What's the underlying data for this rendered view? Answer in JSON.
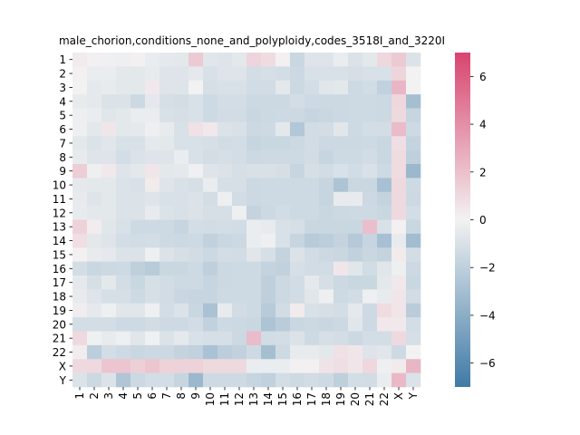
{
  "chart_data": {
    "type": "heatmap",
    "title": "male_chorion,conditions_none_and_polyploidy,codes_3518I_and_3220I",
    "xlabel": "",
    "ylabel": "",
    "categories": [
      "1",
      "2",
      "3",
      "4",
      "5",
      "6",
      "7",
      "8",
      "9",
      "10",
      "11",
      "12",
      "13",
      "14",
      "15",
      "16",
      "17",
      "18",
      "19",
      "20",
      "21",
      "22",
      "X",
      "Y"
    ],
    "value_range": [
      -7,
      7
    ],
    "colorbar_ticks": [
      6,
      4,
      2,
      0,
      -2,
      -4,
      -6
    ],
    "colormap": {
      "low": "#3f7aa6",
      "mid": "#f2f2f2",
      "high": "#d9446f"
    },
    "values": [
      [
        0.3,
        0.1,
        -0.1,
        -0.2,
        0.1,
        -0.3,
        -0.5,
        -0.6,
        1.6,
        -0.7,
        -0.8,
        -0.6,
        1.2,
        0.9,
        0.1,
        -1.6,
        -0.8,
        -0.8,
        -0.3,
        -0.9,
        -0.6,
        1.1,
        1.6,
        -0.9
      ],
      [
        0.1,
        -0.3,
        -0.3,
        -0.6,
        -0.6,
        -0.4,
        -0.8,
        -0.8,
        -0.5,
        -1.0,
        -0.8,
        -0.8,
        -1.2,
        -1.1,
        -1.2,
        -1.5,
        -1.0,
        -1.0,
        -1.0,
        -1.1,
        -1.0,
        -1.0,
        1.2,
        0.0
      ],
      [
        0.0,
        -0.5,
        -0.4,
        -0.6,
        -0.6,
        0.4,
        -0.8,
        -0.8,
        0.0,
        -1.1,
        -1.0,
        -1.0,
        -1.3,
        -1.3,
        -0.6,
        -1.5,
        -1.2,
        -0.7,
        -0.6,
        -1.4,
        -1.3,
        -1.9,
        2.4,
        0.0
      ],
      [
        -0.4,
        -0.5,
        -0.9,
        -0.9,
        -1.5,
        -0.5,
        -1.1,
        -1.2,
        -1.0,
        -1.4,
        -1.2,
        -1.2,
        -1.5,
        -1.5,
        -1.5,
        -1.2,
        -1.4,
        -1.5,
        -1.5,
        -1.4,
        -1.4,
        -1.5,
        1.1,
        -3.0
      ],
      [
        -0.2,
        -0.3,
        -0.7,
        -0.6,
        -0.3,
        -0.3,
        -1.0,
        -1.1,
        -1.0,
        -1.4,
        -1.3,
        -1.3,
        -1.6,
        -1.5,
        -1.4,
        -1.5,
        -1.7,
        -1.6,
        -1.5,
        -1.4,
        -1.4,
        -1.5,
        1.0,
        -1.7
      ],
      [
        -0.2,
        -0.6,
        0.5,
        -0.6,
        -0.5,
        -0.2,
        -0.4,
        -1.0,
        0.7,
        0.4,
        -0.9,
        -1.0,
        -1.5,
        -1.4,
        -0.6,
        -2.5,
        -1.3,
        -1.2,
        -0.7,
        -1.4,
        -1.2,
        -1.2,
        2.2,
        -1.4
      ],
      [
        -0.6,
        -0.9,
        -0.7,
        -1.0,
        -1.0,
        -0.5,
        -0.6,
        -1.0,
        -1.0,
        -1.1,
        -1.3,
        -1.2,
        -1.7,
        -1.6,
        -1.6,
        -1.5,
        -1.3,
        -1.5,
        -1.5,
        -1.5,
        -1.4,
        -1.6,
        0.8,
        -1.8
      ],
      [
        -0.4,
        -0.8,
        -0.8,
        -1.2,
        -0.9,
        -0.8,
        -0.8,
        -0.3,
        -1.0,
        -1.2,
        -1.1,
        -1.2,
        -1.5,
        -1.4,
        -1.4,
        -1.4,
        -1.3,
        -1.7,
        -1.4,
        -1.4,
        -1.3,
        -1.6,
        0.9,
        -2.0
      ],
      [
        1.5,
        -0.2,
        0.4,
        -0.8,
        -0.6,
        0.5,
        -0.6,
        -0.5,
        -0.1,
        -0.8,
        -0.9,
        -1.1,
        -1.0,
        -1.0,
        -1.1,
        -1.7,
        -1.1,
        -1.3,
        -1.0,
        -1.3,
        -1.0,
        -1.4,
        0.9,
        -3.4
      ],
      [
        -0.5,
        -0.6,
        -0.6,
        -0.9,
        -1.0,
        0.3,
        -0.8,
        -1.0,
        -1.1,
        -0.3,
        -1.1,
        -1.1,
        -1.5,
        -1.4,
        -1.4,
        -1.4,
        -1.4,
        -1.7,
        -2.7,
        -1.6,
        -1.6,
        -2.9,
        1.0,
        -1.4
      ],
      [
        -0.4,
        -0.8,
        -0.6,
        -0.9,
        -0.9,
        -0.8,
        -1.0,
        -1.0,
        -0.9,
        -1.2,
        -0.2,
        -1.3,
        -1.5,
        -1.4,
        -1.4,
        -1.4,
        -1.4,
        -1.7,
        -0.4,
        -0.4,
        -1.5,
        -1.8,
        1.0,
        -1.5
      ],
      [
        -0.4,
        -0.6,
        -0.6,
        -0.9,
        -0.9,
        -0.4,
        -0.9,
        -1.0,
        -0.9,
        -1.1,
        -1.1,
        -0.2,
        -1.8,
        -1.5,
        -1.3,
        -1.4,
        -1.4,
        -1.6,
        -1.5,
        -1.4,
        -1.4,
        -1.6,
        1.0,
        -1.2
      ],
      [
        1.3,
        0.2,
        -0.7,
        -1.0,
        -1.4,
        -1.4,
        -1.4,
        -1.7,
        -1.2,
        -1.3,
        -1.2,
        -1.3,
        -0.3,
        -0.4,
        -1.0,
        -1.1,
        -1.6,
        -1.6,
        -1.6,
        -1.6,
        2.1,
        -1.0,
        0.1,
        -1.6
      ],
      [
        0.8,
        -0.6,
        -0.8,
        -1.2,
        -1.3,
        -1.2,
        -1.4,
        -1.5,
        -1.4,
        -1.9,
        -1.6,
        -1.5,
        -0.3,
        -0.2,
        -1.0,
        -1.7,
        -2.3,
        -2.1,
        -1.8,
        -2.4,
        -1.7,
        -2.9,
        -0.4,
        -3.1
      ],
      [
        0.1,
        -0.4,
        -0.5,
        -0.9,
        -0.9,
        -0.2,
        -0.9,
        -1.1,
        -1.3,
        -1.5,
        -1.2,
        -1.3,
        -0.7,
        -1.1,
        -1.8,
        -0.9,
        -1.3,
        -1.5,
        -1.6,
        -1.9,
        -1.6,
        -1.8,
        0.3,
        -1.2
      ],
      [
        -1.2,
        -1.6,
        -1.5,
        -1.4,
        -2.0,
        -2.3,
        -1.6,
        -1.6,
        -1.4,
        -2.0,
        -1.5,
        -1.4,
        -1.4,
        -1.8,
        -1.9,
        -1.1,
        -1.3,
        -1.3,
        0.5,
        -0.7,
        -1.3,
        -0.7,
        -0.2,
        -1.5
      ],
      [
        -0.5,
        -1.1,
        -0.6,
        -1.2,
        -1.6,
        -1.1,
        -1.3,
        -1.4,
        -1.4,
        -1.7,
        -1.5,
        -1.4,
        -1.4,
        -2.0,
        -1.5,
        -1.3,
        -0.5,
        -1.1,
        -1.5,
        -1.6,
        -1.6,
        -0.6,
        0.4,
        -1.6
      ],
      [
        -0.4,
        -0.8,
        -1.1,
        -1.1,
        -1.4,
        -1.1,
        -1.3,
        -1.6,
        -1.7,
        -1.7,
        -1.4,
        -1.4,
        -1.4,
        -2.0,
        -1.5,
        -1.3,
        -0.7,
        -0.2,
        -1.4,
        -1.3,
        -0.2,
        -0.4,
        0.5,
        -1.3
      ],
      [
        0.2,
        -0.5,
        -0.2,
        -0.7,
        -0.7,
        -0.2,
        -1.2,
        -0.9,
        -1.6,
        -2.8,
        -0.4,
        -1.3,
        -1.4,
        -2.3,
        -1.3,
        0.3,
        -1.0,
        -1.1,
        -1.2,
        -0.5,
        -1.4,
        0.9,
        0.5,
        -2.2
      ],
      [
        -1.2,
        -1.2,
        -1.2,
        -1.4,
        -1.4,
        -1.3,
        -1.4,
        -1.4,
        -1.3,
        -1.9,
        -1.4,
        -1.5,
        -1.6,
        -2.7,
        -2.2,
        -1.6,
        -1.5,
        -1.6,
        -1.5,
        -0.7,
        -1.4,
        0.4,
        0.4,
        -1.2
      ],
      [
        1.0,
        -0.1,
        -0.4,
        -0.2,
        -0.7,
        -0.1,
        -0.9,
        -0.5,
        -1.0,
        -1.1,
        -1.1,
        -1.5,
        2.2,
        -1.3,
        -1.2,
        -0.9,
        -1.4,
        -1.1,
        -1.2,
        -1.5,
        -1.2,
        -1.2,
        1.0,
        -1.1
      ],
      [
        0.2,
        -2.1,
        -1.2,
        -1.4,
        -1.6,
        -1.5,
        -1.5,
        -1.8,
        -1.9,
        -2.8,
        -2.1,
        -1.9,
        -1.4,
        -3.0,
        -1.4,
        -0.4,
        -0.4,
        -0.6,
        0.7,
        0.5,
        -0.8,
        -0.7,
        -1.4,
        0.0
      ],
      [
        1.0,
        1.0,
        1.8,
        1.8,
        1.4,
        1.8,
        1.3,
        1.3,
        1.3,
        1.0,
        1.0,
        1.0,
        -0.3,
        -0.3,
        -0.3,
        0.1,
        0.1,
        0.6,
        0.8,
        0.5,
        1.1,
        -0.2,
        0.3,
        2.4
      ],
      [
        -0.9,
        -1.5,
        -0.9,
        -2.6,
        -1.5,
        -1.2,
        -1.2,
        -1.7,
        -3.4,
        -1.4,
        -1.4,
        -1.4,
        -1.7,
        -1.9,
        -1.2,
        -1.4,
        -1.3,
        -1.4,
        -2.0,
        -1.2,
        -1.3,
        -0.3,
        2.3,
        -0.9
      ]
    ]
  }
}
